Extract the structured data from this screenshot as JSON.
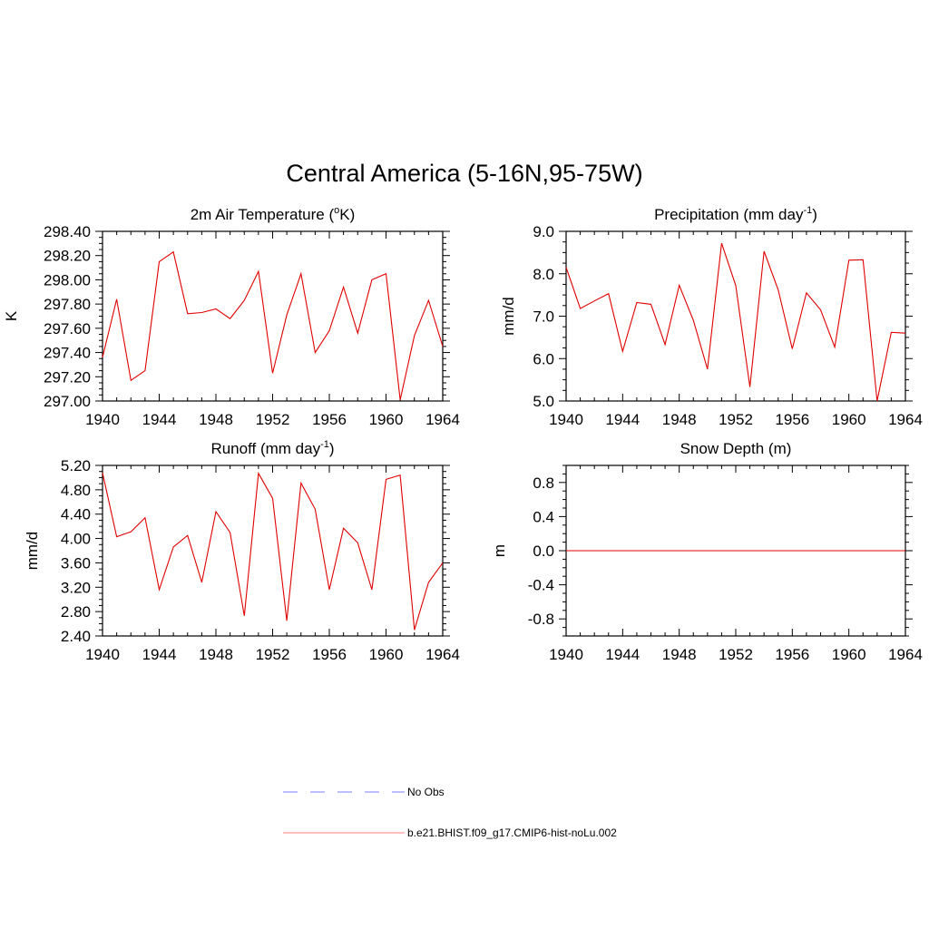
{
  "figure": {
    "title": "Central America (5-16N,95-75W)"
  },
  "chart_data": [
    {
      "type": "line",
      "title": "2m Air Temperature (",
      "title_sup": "o",
      "title_end": "K)",
      "xlabel": "",
      "ylabel": "K",
      "xlim": [
        1940,
        1964
      ],
      "ylim": [
        297.0,
        298.4
      ],
      "xticks": [
        1940,
        1944,
        1948,
        1952,
        1956,
        1960,
        1964
      ],
      "yticks": [
        "297.00",
        "297.20",
        "297.40",
        "297.60",
        "297.80",
        "298.00",
        "298.20",
        "298.40"
      ],
      "color": "#e00000",
      "series": [
        {
          "x": [
            1940,
            1941,
            1942,
            1943,
            1944,
            1945,
            1946,
            1947,
            1948,
            1949,
            1950,
            1951,
            1952,
            1953,
            1954,
            1955,
            1956,
            1957,
            1958,
            1959,
            1960,
            1961,
            1962,
            1963,
            1964
          ],
          "values": [
            297.36,
            297.84,
            297.17,
            297.25,
            298.15,
            298.23,
            297.72,
            297.73,
            297.76,
            297.68,
            297.83,
            298.07,
            297.23,
            297.71,
            298.05,
            297.4,
            297.58,
            297.94,
            297.56,
            298.0,
            298.05,
            297.01,
            297.54,
            297.83,
            297.45
          ]
        }
      ]
    },
    {
      "type": "line",
      "title": "Precipitation (mm day",
      "title_sup": "-1",
      "title_end": ")",
      "xlabel": "",
      "ylabel": "mm/d",
      "xlim": [
        1940,
        1964
      ],
      "ylim": [
        5.0,
        9.0
      ],
      "xticks": [
        1940,
        1944,
        1948,
        1952,
        1956,
        1960,
        1964
      ],
      "yticks": [
        "5.0",
        "6.0",
        "7.0",
        "8.0",
        "9.0"
      ],
      "color": "#e00000",
      "series": [
        {
          "x": [
            1940,
            1941,
            1942,
            1943,
            1944,
            1945,
            1946,
            1947,
            1948,
            1949,
            1950,
            1951,
            1952,
            1953,
            1954,
            1955,
            1956,
            1957,
            1958,
            1959,
            1960,
            1961,
            1962,
            1963,
            1964
          ],
          "values": [
            8.15,
            7.18,
            7.36,
            7.53,
            6.17,
            7.32,
            7.28,
            6.33,
            7.73,
            6.9,
            5.75,
            8.72,
            7.72,
            5.33,
            8.53,
            7.62,
            6.23,
            7.55,
            7.15,
            6.27,
            8.32,
            8.33,
            5.0,
            6.62,
            6.6
          ]
        }
      ]
    },
    {
      "type": "line",
      "title": "Runoff (mm day",
      "title_sup": "-1",
      "title_end": ")",
      "xlabel": "",
      "ylabel": "mm/d",
      "xlim": [
        1940,
        1964
      ],
      "ylim": [
        2.4,
        5.2
      ],
      "xticks": [
        1940,
        1944,
        1948,
        1952,
        1956,
        1960,
        1964
      ],
      "yticks": [
        "2.40",
        "2.80",
        "3.20",
        "3.60",
        "4.00",
        "4.40",
        "4.80",
        "5.20"
      ],
      "color": "#e00000",
      "series": [
        {
          "x": [
            1940,
            1941,
            1942,
            1943,
            1944,
            1945,
            1946,
            1947,
            1948,
            1949,
            1950,
            1951,
            1952,
            1953,
            1954,
            1955,
            1956,
            1957,
            1958,
            1959,
            1960,
            1961,
            1962,
            1963,
            1964
          ],
          "values": [
            5.08,
            4.03,
            4.11,
            4.34,
            3.16,
            3.86,
            4.05,
            3.28,
            4.44,
            4.1,
            2.73,
            5.07,
            4.66,
            2.65,
            4.91,
            4.48,
            3.16,
            4.17,
            3.93,
            3.16,
            4.97,
            5.04,
            2.5,
            3.28,
            3.6
          ]
        }
      ]
    },
    {
      "type": "line",
      "title": "Snow Depth (m)",
      "title_sup": "",
      "title_end": "",
      "xlabel": "",
      "ylabel": "m",
      "xlim": [
        1940,
        1964
      ],
      "ylim": [
        -1.0,
        1.0
      ],
      "xticks": [
        1940,
        1944,
        1948,
        1952,
        1956,
        1960,
        1964
      ],
      "yticks": [
        "-0.8",
        "-0.4",
        "0.0",
        "0.4",
        "0.8"
      ],
      "color": "#e00000",
      "series": [
        {
          "x": [
            1940,
            1964
          ],
          "values": [
            0.0,
            0.0
          ]
        }
      ]
    }
  ],
  "legend": {
    "items": [
      {
        "label": "No Obs",
        "color": "#9999ff",
        "dash": true
      },
      {
        "label": "b.e21.BHIST.f09_g17.CMIP6-hist-noLu.002",
        "color": "#ff9999",
        "dash": false
      }
    ]
  }
}
